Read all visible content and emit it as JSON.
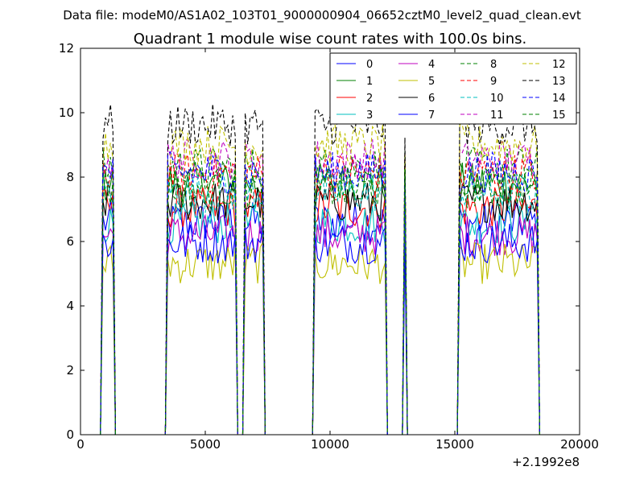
{
  "chart_data": {
    "type": "line",
    "suptitle": "Data file: modeM0/AS1A02_103T01_9000000904_06652cztM0_level2_quad_clean.evt",
    "title": "Quadrant 1 module wise count rates with 100.0s bins.",
    "xlabel": "",
    "ylabel": "",
    "x_offset_label": "+2.1992e8",
    "xlim": [
      0,
      20000
    ],
    "ylim": [
      0,
      12
    ],
    "xticks": [
      0,
      5000,
      10000,
      15000,
      20000
    ],
    "yticks": [
      0,
      2,
      4,
      6,
      8,
      10,
      12
    ],
    "xtick_labels": [
      "0",
      "5000",
      "10000",
      "15000",
      "20000"
    ],
    "ytick_labels": [
      "0",
      "2",
      "4",
      "6",
      "8",
      "10",
      "12"
    ],
    "legend_position": "top-right",
    "legend_columns": 4,
    "bin_seconds": 100,
    "active_intervals": [
      [
        850,
        1380
      ],
      [
        3450,
        6280
      ],
      [
        6600,
        7320
      ],
      [
        9350,
        12250
      ],
      [
        12950,
        13030
      ],
      [
        15200,
        18380
      ]
    ],
    "series": [
      {
        "name": "0",
        "color": "#0000ff",
        "style": "solid",
        "level": 6.6
      },
      {
        "name": "1",
        "color": "#008000",
        "style": "solid",
        "level": 7.8
      },
      {
        "name": "2",
        "color": "#ff0000",
        "style": "solid",
        "level": 7.0
      },
      {
        "name": "3",
        "color": "#00bfbf",
        "style": "solid",
        "level": 6.5
      },
      {
        "name": "4",
        "color": "#bf00bf",
        "style": "solid",
        "level": 6.2
      },
      {
        "name": "5",
        "color": "#bfbf00",
        "style": "solid",
        "level": 5.3
      },
      {
        "name": "6",
        "color": "#000000",
        "style": "solid",
        "level": 7.2
      },
      {
        "name": "7",
        "color": "#0000ff",
        "style": "solid",
        "level": 5.9
      },
      {
        "name": "8",
        "color": "#008000",
        "style": "dashed",
        "level": 8.3
      },
      {
        "name": "9",
        "color": "#ff0000",
        "style": "dashed",
        "level": 8.1
      },
      {
        "name": "10",
        "color": "#00bfbf",
        "style": "dashed",
        "level": 7.5
      },
      {
        "name": "11",
        "color": "#bf00bf",
        "style": "dashed",
        "level": 8.5
      },
      {
        "name": "12",
        "color": "#bfbf00",
        "style": "dashed",
        "level": 9.0
      },
      {
        "name": "13",
        "color": "#000000",
        "style": "dashed",
        "level": 9.6
      },
      {
        "name": "14",
        "color": "#0000ff",
        "style": "dashed",
        "level": 8.1
      },
      {
        "name": "15",
        "color": "#008000",
        "style": "dashed",
        "level": 7.6
      }
    ]
  }
}
